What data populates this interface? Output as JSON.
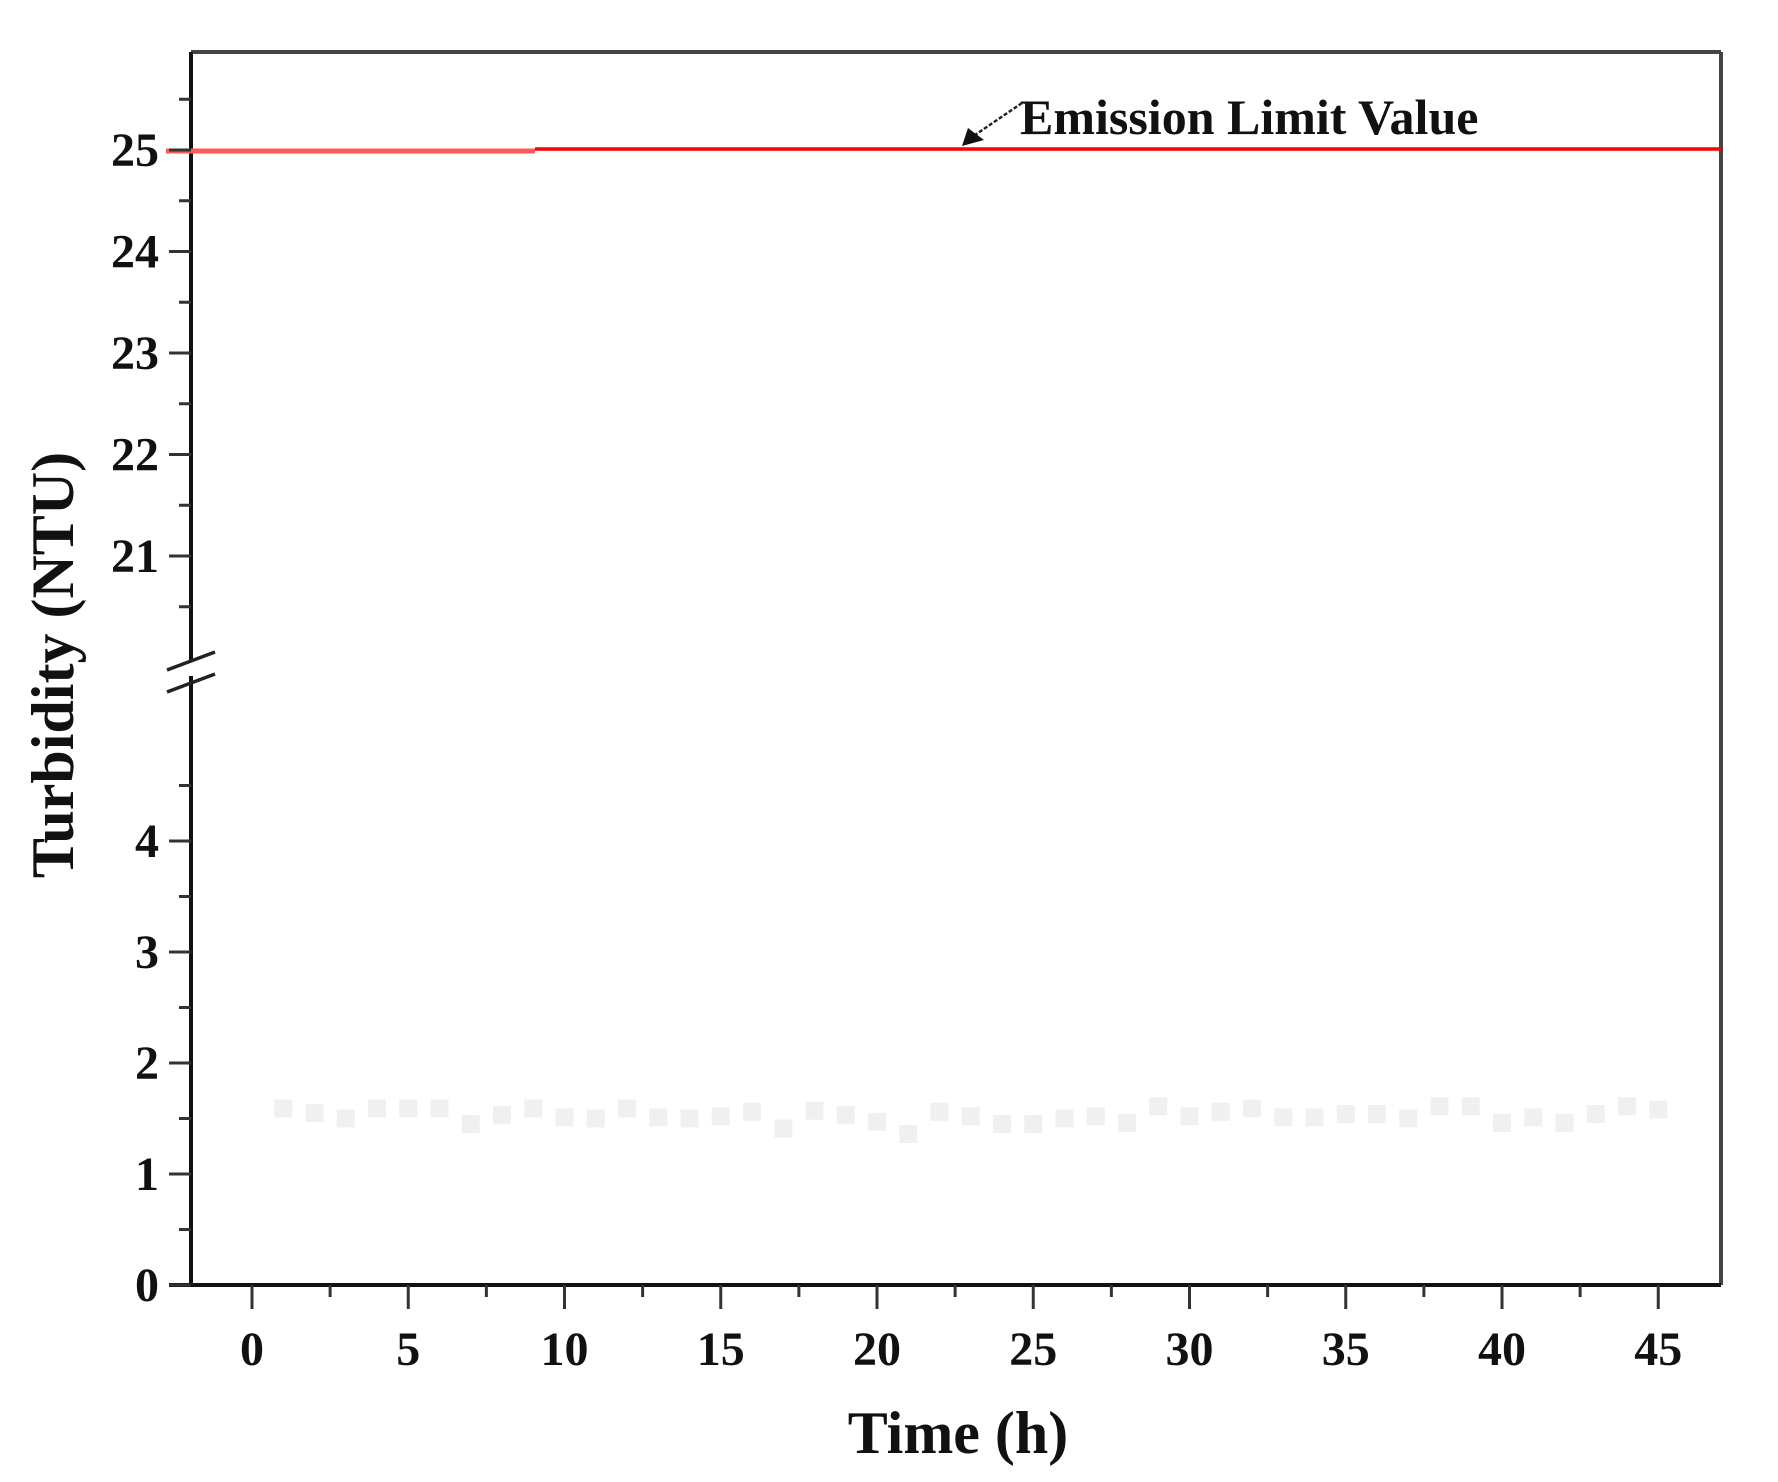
{
  "chart_data": {
    "type": "scatter",
    "title": "",
    "xlabel": "Time (h)",
    "ylabel": "Turbidity (NTU)",
    "xlim": [
      -2,
      47
    ],
    "ylim": [
      0,
      26
    ],
    "y_axis_break": {
      "lower_segment": [
        0,
        5.4
      ],
      "upper_segment": [
        20.2,
        26
      ]
    },
    "x_ticks": [
      0,
      5,
      10,
      15,
      20,
      25,
      30,
      35,
      40,
      45
    ],
    "y_ticks_lower": [
      0,
      1,
      2,
      3,
      4
    ],
    "y_ticks_upper": [
      21,
      22,
      23,
      24,
      25
    ],
    "grid": false,
    "legend": null,
    "series": [
      {
        "name": "Turbidity",
        "marker": "square",
        "color": "#eff0f0",
        "x": [
          1,
          2,
          3,
          4,
          5,
          6,
          7,
          8,
          9,
          10,
          11,
          12,
          13,
          14,
          15,
          16,
          17,
          18,
          19,
          20,
          21,
          22,
          23,
          24,
          25,
          26,
          27,
          28,
          29,
          30,
          31,
          32,
          33,
          34,
          35,
          36,
          37,
          38,
          39,
          40,
          41,
          42,
          43,
          44,
          45
        ],
        "y": [
          1.59,
          1.55,
          1.5,
          1.59,
          1.59,
          1.59,
          1.45,
          1.53,
          1.59,
          1.51,
          1.5,
          1.59,
          1.51,
          1.5,
          1.52,
          1.56,
          1.41,
          1.57,
          1.53,
          1.47,
          1.36,
          1.56,
          1.52,
          1.45,
          1.45,
          1.5,
          1.52,
          1.46,
          1.61,
          1.52,
          1.56,
          1.59,
          1.51,
          1.51,
          1.54,
          1.54,
          1.5,
          1.61,
          1.61,
          1.46,
          1.51,
          1.46,
          1.54,
          1.61,
          1.58
        ]
      }
    ],
    "reference_lines": [
      {
        "name": "Emission Limit Value",
        "y": 25,
        "color": "#ff0000"
      }
    ],
    "annotations": [
      {
        "text": "Emission Limit Value",
        "arrow_to": {
          "x": 23,
          "y": 25
        }
      }
    ]
  },
  "labels": {
    "xlabel": "Time (h)",
    "ylabel": "Turbidity (NTU)",
    "annotation": "Emission Limit Value"
  },
  "colors": {
    "axis": "#111111",
    "limit_line": "#ff0000",
    "limit_line_left": "#ff5a5a",
    "marker": "#eff0f0"
  }
}
